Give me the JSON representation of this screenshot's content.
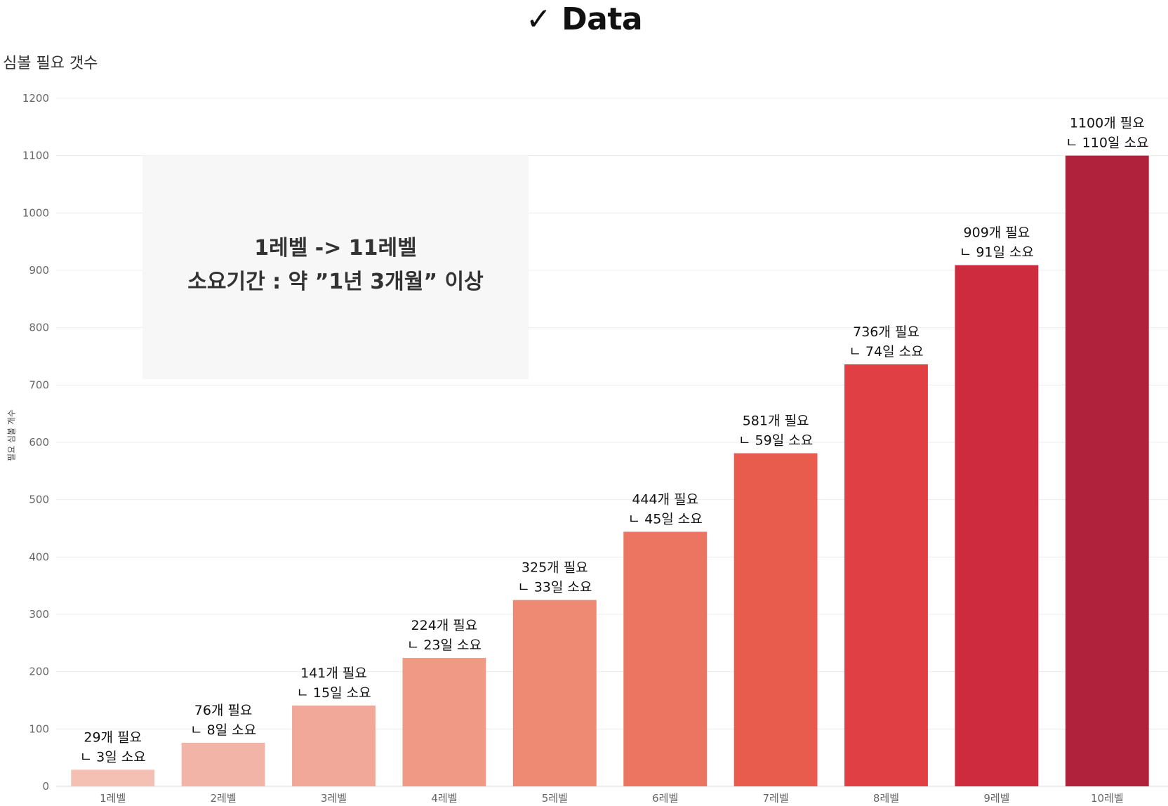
{
  "page_title": "✓ Data",
  "chart_data": {
    "type": "bar",
    "title": "심볼 필요 갯수",
    "ylabel": "필요 심볼 개수",
    "xlabel": "",
    "ylim": [
      0,
      1200
    ],
    "yticks": [
      0,
      100,
      200,
      300,
      400,
      500,
      600,
      700,
      800,
      900,
      1000,
      1100,
      1200
    ],
    "grid": true,
    "categories": [
      "1레벨",
      "2레벨",
      "3레벨",
      "4레벨",
      "5레벨",
      "6레벨",
      "7레벨",
      "8레벨",
      "9레벨",
      "10레벨"
    ],
    "values": [
      29,
      76,
      141,
      224,
      325,
      444,
      581,
      736,
      909,
      1100
    ],
    "data_labels": [
      [
        "29개 필요",
        "ㄴ 3일 소요"
      ],
      [
        "76개 필요",
        "ㄴ 8일 소요"
      ],
      [
        "141개 필요",
        "ㄴ 15일 소요"
      ],
      [
        "224개 필요",
        "ㄴ 23일 소요"
      ],
      [
        "325개 필요",
        "ㄴ 33일 소요"
      ],
      [
        "444개 필요",
        "ㄴ 45일 소요"
      ],
      [
        "581개 필요",
        "ㄴ 59일 소요"
      ],
      [
        "736개 필요",
        "ㄴ 74일 소요"
      ],
      [
        "909개 필요",
        "ㄴ 91일 소요"
      ],
      [
        "1100개 필요",
        "ㄴ 110일 소요"
      ]
    ],
    "colors": [
      "#f4c0b4",
      "#f2b4a6",
      "#f1a898",
      "#f09a86",
      "#ee8a74",
      "#eb7561",
      "#e85c4e",
      "#e04044",
      "#cf2b3e",
      "#b0223b"
    ],
    "annotation": {
      "lines": [
        "1레벨 -> 11레벨",
        "소요기간 : 약 ”1년 3개월” 이상"
      ],
      "y_range": [
        710,
        1100
      ]
    }
  }
}
